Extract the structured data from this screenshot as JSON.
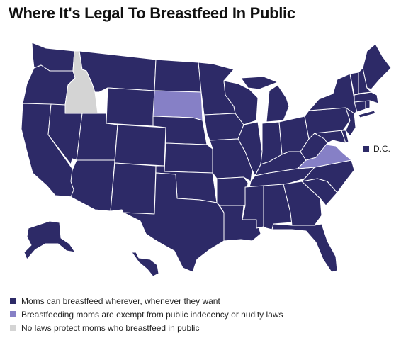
{
  "title": "Where It's Legal To Breastfeed In Public",
  "colors": {
    "legal_everywhere": "#2d2a67",
    "exempt": "#8680c6",
    "no_laws": "#d4d4d4",
    "border": "#ffffff"
  },
  "legend": [
    {
      "category": "legal_everywhere",
      "label": "Moms can breastfeed wherever, whenever they want"
    },
    {
      "category": "exempt",
      "label": "Breastfeeding moms are exempt from public indecency or nudity laws"
    },
    {
      "category": "no_laws",
      "label": "No laws protect moms who breastfeed in public"
    }
  ],
  "dc": {
    "label": "D.C.",
    "category": "legal_everywhere"
  },
  "states": {
    "Washington": "legal_everywhere",
    "Oregon": "legal_everywhere",
    "California": "legal_everywhere",
    "Idaho": "no_laws",
    "Nevada": "legal_everywhere",
    "Montana": "legal_everywhere",
    "Wyoming": "legal_everywhere",
    "Utah": "legal_everywhere",
    "Arizona": "legal_everywhere",
    "Colorado": "legal_everywhere",
    "New Mexico": "legal_everywhere",
    "North Dakota": "legal_everywhere",
    "South Dakota": "exempt",
    "Nebraska": "legal_everywhere",
    "Kansas": "legal_everywhere",
    "Oklahoma": "legal_everywhere",
    "Texas": "legal_everywhere",
    "Minnesota": "legal_everywhere",
    "Iowa": "legal_everywhere",
    "Missouri": "legal_everywhere",
    "Arkansas": "legal_everywhere",
    "Louisiana": "legal_everywhere",
    "Wisconsin": "legal_everywhere",
    "Illinois": "legal_everywhere",
    "Michigan": "legal_everywhere",
    "Indiana": "legal_everywhere",
    "Ohio": "legal_everywhere",
    "Kentucky": "legal_everywhere",
    "Tennessee": "legal_everywhere",
    "Mississippi": "legal_everywhere",
    "Alabama": "legal_everywhere",
    "Georgia": "legal_everywhere",
    "Florida": "legal_everywhere",
    "South Carolina": "legal_everywhere",
    "North Carolina": "legal_everywhere",
    "Virginia": "exempt",
    "West Virginia": "legal_everywhere",
    "Maryland": "legal_everywhere",
    "Delaware": "legal_everywhere",
    "Pennsylvania": "legal_everywhere",
    "New Jersey": "legal_everywhere",
    "New York": "legal_everywhere",
    "Connecticut": "legal_everywhere",
    "Rhode Island": "legal_everywhere",
    "Massachusetts": "legal_everywhere",
    "Vermont": "legal_everywhere",
    "New Hampshire": "legal_everywhere",
    "Maine": "legal_everywhere",
    "Alaska": "legal_everywhere",
    "Hawaii": "legal_everywhere"
  }
}
